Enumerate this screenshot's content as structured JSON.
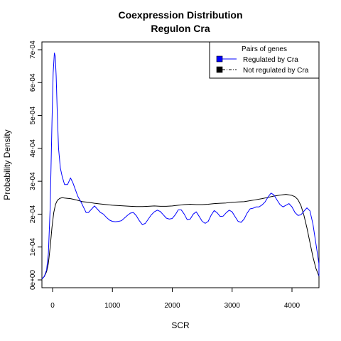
{
  "chart_data": {
    "type": "line",
    "title": "Coexpression Distribution",
    "subtitle": "Regulon Cra",
    "xlabel": "SCR",
    "ylabel": "Probability Density",
    "xlim": [
      -180,
      4500
    ],
    "ylim": [
      0,
      0.00072
    ],
    "x_ticks": [
      0,
      1000,
      2000,
      3000,
      4000
    ],
    "x_tick_labels": [
      "0",
      "1000",
      "2000",
      "3000",
      "4000"
    ],
    "y_ticks": [
      0,
      0.0001,
      0.0002,
      0.0003,
      0.0004,
      0.0005,
      0.0006,
      0.0007
    ],
    "y_tick_labels": [
      "0e+00",
      "1e-04",
      "2e-04",
      "3e-04",
      "4e-04",
      "5e-04",
      "6e-04",
      "7e-04"
    ],
    "grid": false,
    "legend": {
      "title": "Pairs of genes",
      "position": "top-right"
    },
    "series": [
      {
        "name": "Regulated by  Cra",
        "color": "#0000ff",
        "line_style": "solid",
        "x": [
          -180,
          -140,
          -100,
          -70,
          -40,
          -10,
          10,
          30,
          45,
          60,
          80,
          100,
          130,
          160,
          200,
          250,
          300,
          340,
          380,
          420,
          450,
          480,
          520,
          560,
          600,
          650,
          700,
          750,
          800,
          850,
          900,
          950,
          1000,
          1050,
          1100,
          1150,
          1200,
          1250,
          1300,
          1350,
          1400,
          1450,
          1500,
          1550,
          1600,
          1650,
          1700,
          1750,
          1800,
          1850,
          1900,
          1950,
          2000,
          2050,
          2100,
          2150,
          2200,
          2250,
          2300,
          2350,
          2400,
          2450,
          2500,
          2550,
          2600,
          2650,
          2700,
          2750,
          2800,
          2850,
          2900,
          2950,
          3000,
          3050,
          3100,
          3150,
          3200,
          3250,
          3300,
          3350,
          3400,
          3450,
          3500,
          3550,
          3600,
          3650,
          3700,
          3750,
          3800,
          3850,
          3900,
          3950,
          4000,
          4050,
          4100,
          4150,
          4200,
          4250,
          4300,
          4350,
          4400,
          4450,
          4500
        ],
        "values": [
          3e-06,
          1e-05,
          3e-05,
          8e-05,
          0.00022,
          0.00048,
          0.00063,
          0.00069,
          0.00068,
          0.00062,
          0.0005,
          0.0004,
          0.00034,
          0.000315,
          0.00029,
          0.00029,
          0.00031,
          0.000295,
          0.000275,
          0.000255,
          0.000245,
          0.000235,
          0.00022,
          0.000205,
          0.000205,
          0.000215,
          0.000225,
          0.000215,
          0.000205,
          0.0002,
          0.00019,
          0.000182,
          0.000178,
          0.000177,
          0.000178,
          0.00018,
          0.000188,
          0.000196,
          0.000203,
          0.000205,
          0.000195,
          0.00018,
          0.000168,
          0.000172,
          0.000185,
          0.000198,
          0.000207,
          0.000212,
          0.000208,
          0.000198,
          0.000188,
          0.000185,
          0.000187,
          0.000198,
          0.000213,
          0.000213,
          0.0002,
          0.000183,
          0.000185,
          0.0002,
          0.000207,
          0.000193,
          0.000178,
          0.000172,
          0.000178,
          0.000197,
          0.000211,
          0.000204,
          0.000193,
          0.000194,
          0.000204,
          0.000212,
          0.000207,
          0.000192,
          0.000178,
          0.000175,
          0.000185,
          0.000203,
          0.000216,
          0.000218,
          0.000222,
          0.000222,
          0.000228,
          0.000237,
          0.000252,
          0.000264,
          0.000258,
          0.000243,
          0.000229,
          0.000222,
          0.000227,
          0.000232,
          0.000222,
          0.000205,
          0.000196,
          0.000198,
          0.000209,
          0.000219,
          0.00021,
          0.00017,
          0.00011,
          5e-05,
          1.2e-05
        ]
      },
      {
        "name": "Not regulated by  Cra",
        "color": "#000000",
        "line_style": "solid",
        "x": [
          -180,
          -140,
          -100,
          -70,
          -40,
          -10,
          20,
          50,
          80,
          120,
          160,
          200,
          250,
          300,
          400,
          500,
          600,
          700,
          800,
          900,
          1000,
          1100,
          1200,
          1300,
          1400,
          1500,
          1600,
          1700,
          1800,
          1900,
          2000,
          2100,
          2200,
          2300,
          2400,
          2500,
          2600,
          2700,
          2800,
          2900,
          3000,
          3100,
          3200,
          3300,
          3400,
          3500,
          3600,
          3700,
          3800,
          3900,
          4000,
          4050,
          4100,
          4150,
          4200,
          4250,
          4300,
          4350,
          4400,
          4450,
          4500
        ],
        "values": [
          3e-06,
          1e-05,
          2.5e-05,
          5e-05,
          0.0001,
          0.00016,
          0.000205,
          0.00023,
          0.000242,
          0.000248,
          0.00025,
          0.000249,
          0.000248,
          0.000247,
          0.000243,
          0.000238,
          0.000236,
          0.000233,
          0.000231,
          0.000229,
          0.000227,
          0.000226,
          0.000225,
          0.000224,
          0.000223,
          0.000223,
          0.000224,
          0.000225,
          0.000224,
          0.000224,
          0.000225,
          0.000227,
          0.000229,
          0.00023,
          0.000229,
          0.000229,
          0.00023,
          0.000232,
          0.000233,
          0.000234,
          0.000236,
          0.000237,
          0.000238,
          0.000241,
          0.000244,
          0.000247,
          0.000251,
          0.000255,
          0.000258,
          0.00026,
          0.000257,
          0.000253,
          0.000244,
          0.000226,
          0.000196,
          0.000158,
          0.000114,
          7e-05,
          3.5e-05,
          1.2e-05,
          3e-06
        ]
      }
    ]
  }
}
